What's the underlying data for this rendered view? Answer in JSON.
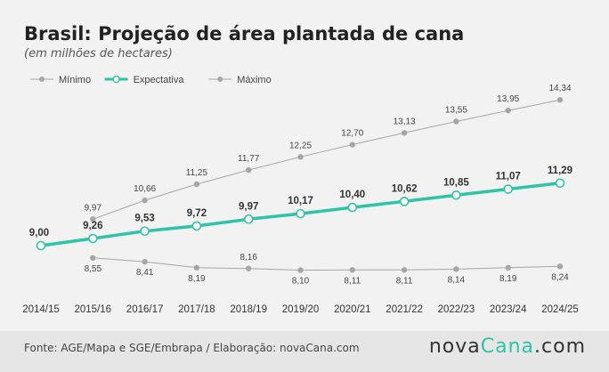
{
  "title": "Brasil: Projeção de área plantada de cana",
  "subtitle": "(em milhões de hectares)",
  "footer": {
    "source": "Fonte: AGE/Mapa e SGE/Embrapa / Elaboração: novaCana.com",
    "logo_part1": "nova",
    "logo_part2": "Cana",
    "logo_part3": ".com"
  },
  "colors": {
    "expectativa": "#2ec4a6",
    "min_max": "#a6a6a6",
    "label": "#333333",
    "small_label": "#444444"
  },
  "chart_data": {
    "type": "line",
    "categories": [
      "2014/15",
      "2015/16",
      "2016/17",
      "2017/18",
      "2018/19",
      "2019/20",
      "2020/21",
      "2021/22",
      "2022/23",
      "2023/24",
      "2024/25"
    ],
    "series": [
      {
        "name": "Mínimo",
        "values": [
          null,
          8.55,
          8.41,
          8.19,
          8.16,
          8.1,
          8.11,
          8.11,
          8.14,
          8.19,
          8.24
        ]
      },
      {
        "name": "Expectativa",
        "values": [
          9.0,
          9.26,
          9.53,
          9.72,
          9.97,
          10.17,
          10.4,
          10.62,
          10.85,
          11.07,
          11.29
        ]
      },
      {
        "name": "Máximo",
        "values": [
          null,
          9.97,
          10.66,
          11.25,
          11.77,
          12.25,
          12.7,
          13.13,
          13.55,
          13.95,
          14.34
        ]
      }
    ],
    "labels": {
      "Mínimo": [
        null,
        "8,55",
        "8,41",
        "8,19",
        "8,16",
        "8,10",
        "8,11",
        "8,11",
        "8,14",
        "8,19",
        "8,24"
      ],
      "Expectativa": [
        "9,00",
        "9,26",
        "9,53",
        "9,72",
        "9,97",
        "10,17",
        "10,40",
        "10,62",
        "10,85",
        "11,07",
        "11,29"
      ],
      "Máximo": [
        null,
        "9,97",
        "10,66",
        "11,25",
        "11,77",
        "12,25",
        "12,70",
        "13,13",
        "13,55",
        "13,95",
        "14,34"
      ]
    },
    "ylim": [
      7.5,
      15
    ],
    "grid": false,
    "legend_position": "top-left"
  }
}
